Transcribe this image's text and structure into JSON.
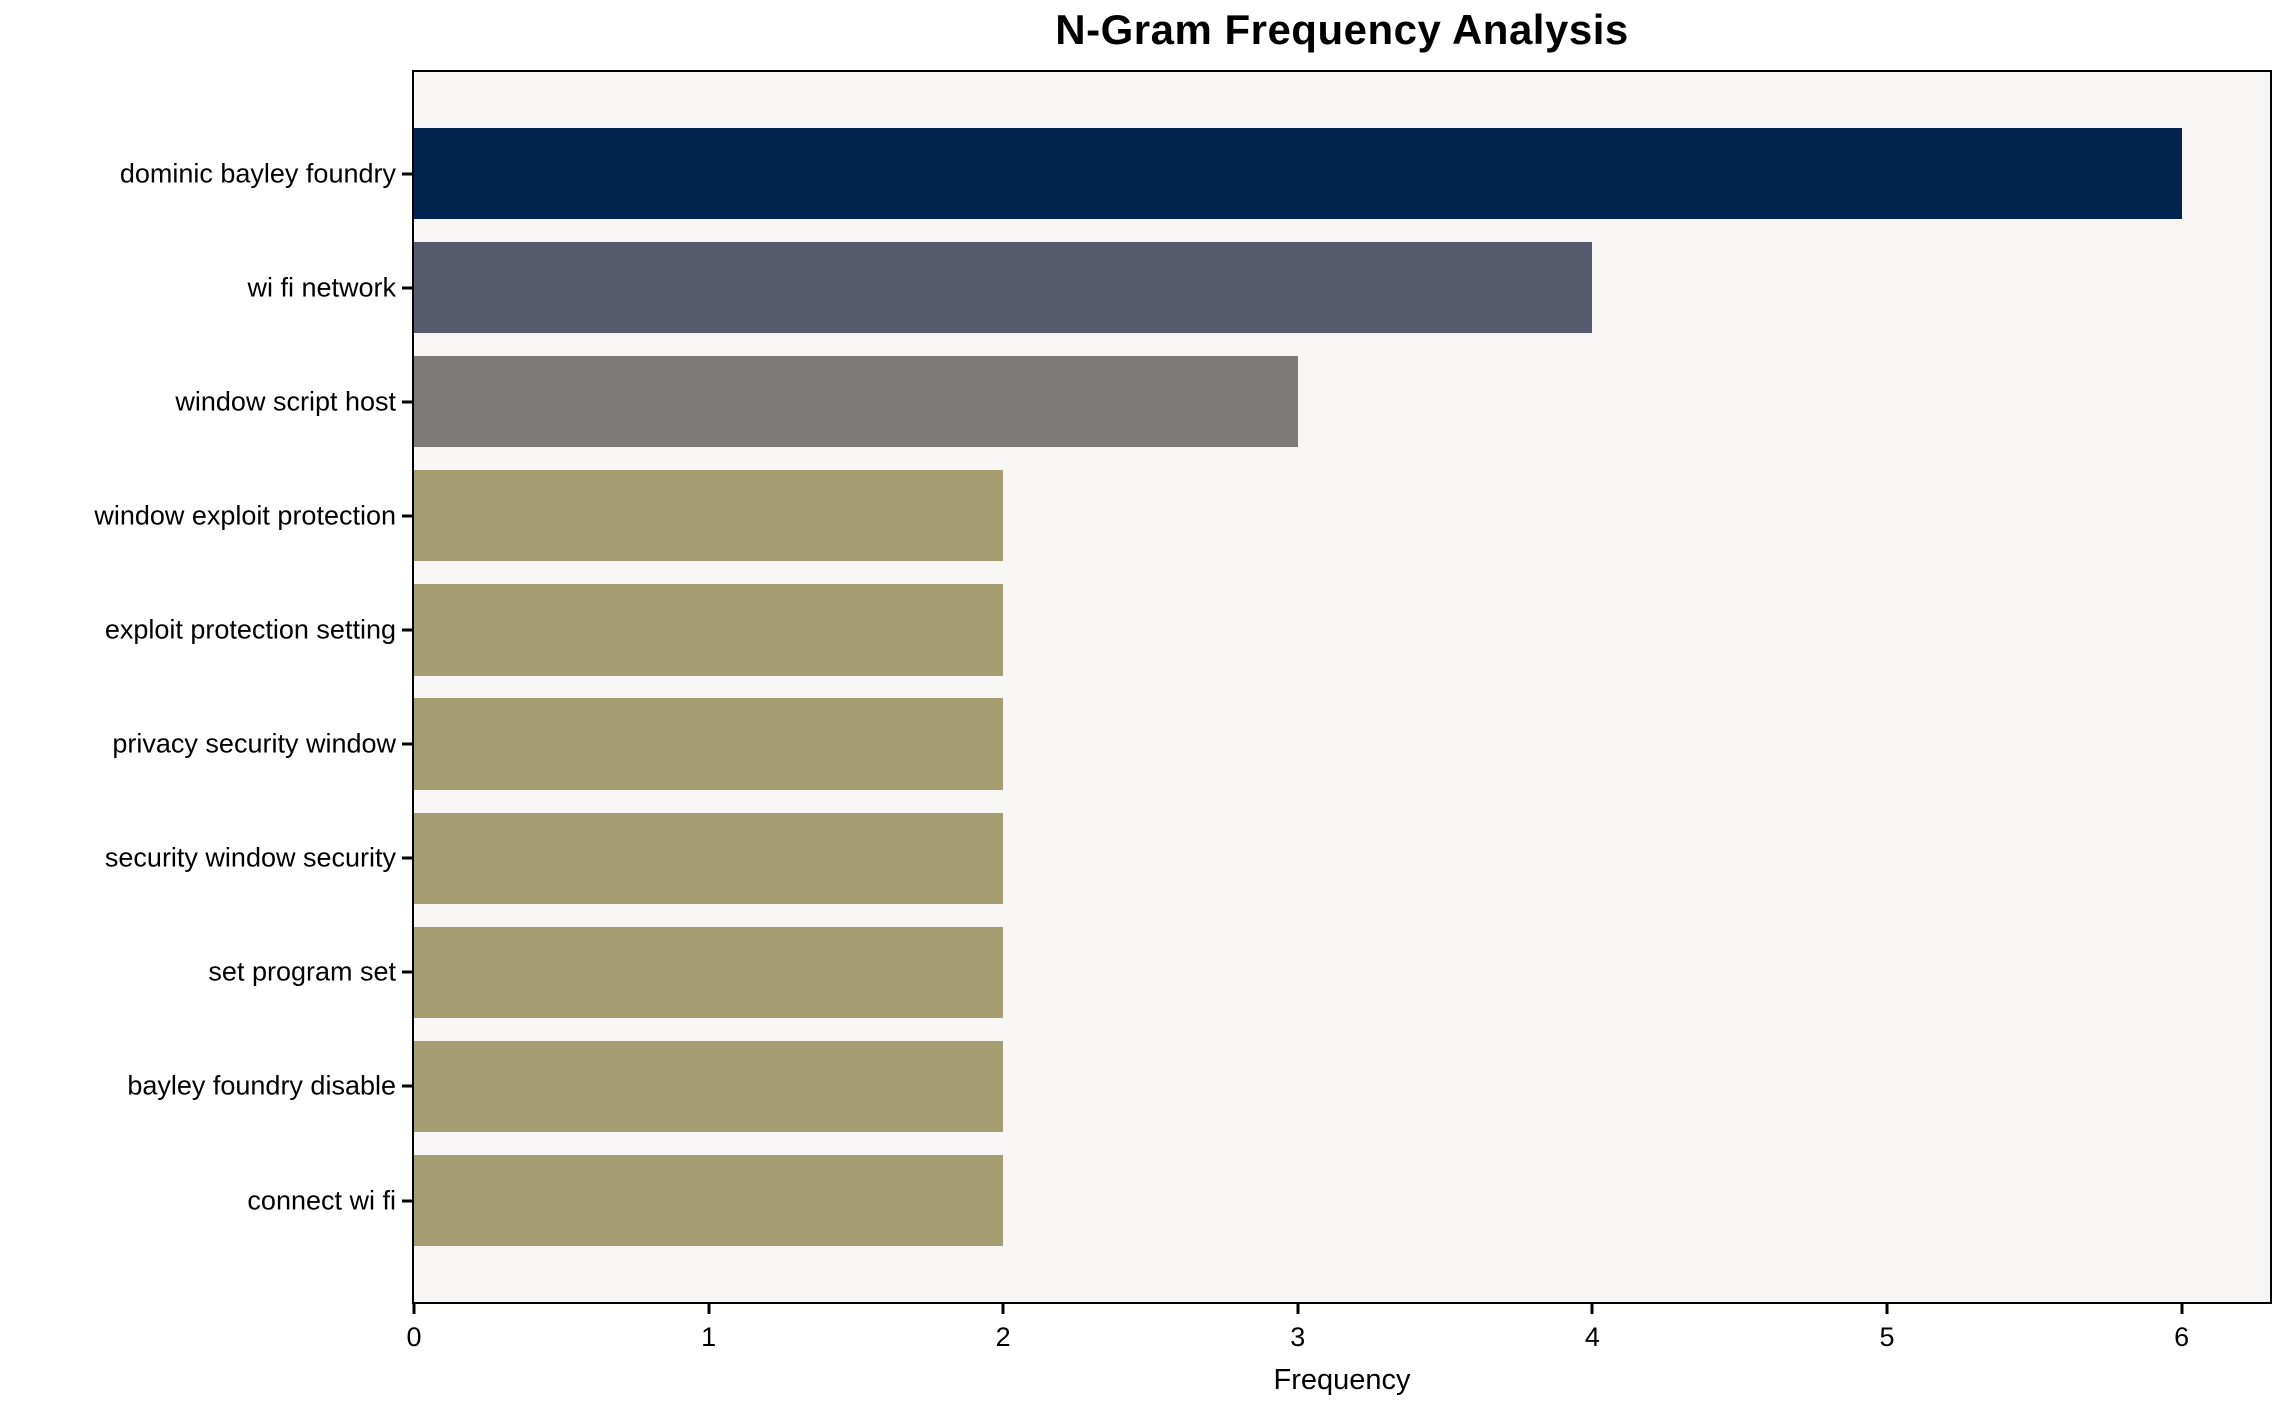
{
  "chart_data": {
    "type": "bar",
    "orientation": "horizontal",
    "title": "N-Gram Frequency Analysis",
    "xlabel": "Frequency",
    "ylabel": "",
    "categories": [
      "dominic bayley foundry",
      "wi fi network",
      "window script host",
      "window exploit protection",
      "exploit protection setting",
      "privacy security window",
      "security window security",
      "set program set",
      "bayley foundry disable",
      "connect wi fi"
    ],
    "values": [
      6,
      4,
      3,
      2,
      2,
      2,
      2,
      2,
      2,
      2
    ],
    "bar_colors": [
      "#02234e",
      "#565c6e",
      "#7b7a76",
      "#a69e72",
      "#a69e72",
      "#a69e72",
      "#a69e72",
      "#a69e72",
      "#a69e72",
      "#a69e72"
    ],
    "x_ticks": [
      0,
      1,
      2,
      3,
      4,
      5,
      6
    ],
    "xlim": [
      0,
      6.3
    ],
    "grid": false,
    "legend_position": "none",
    "plot_background": "#f7f6f4",
    "figure_background": "#ffffff",
    "axis_color": "#000000",
    "bar_fraction": 0.8
  }
}
